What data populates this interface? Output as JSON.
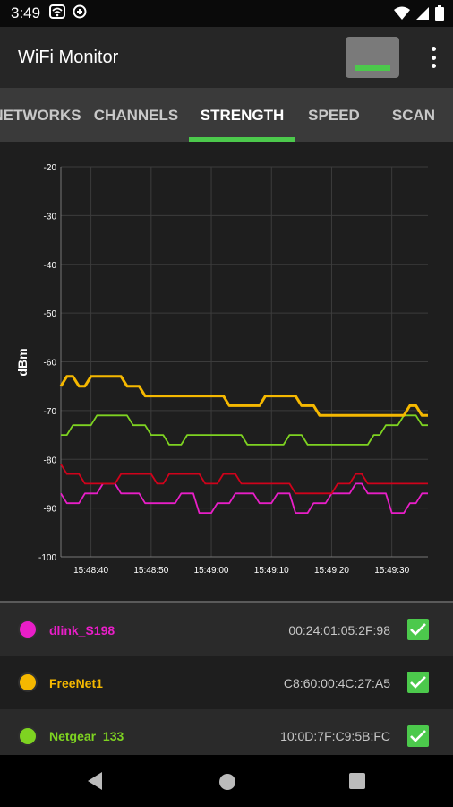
{
  "status_bar": {
    "time": "3:49",
    "left_icons": [
      "wifi-box-icon",
      "data-saver-icon"
    ],
    "right_icons": [
      "wifi-signal-icon",
      "cell-signal-icon",
      "battery-icon"
    ]
  },
  "app_bar": {
    "title": "WiFi Monitor",
    "signal_indicator_color": "#4cc94c",
    "menu_icon": "more-vert-icon"
  },
  "tabs": {
    "items": [
      {
        "label": "NETWORKS",
        "active": false
      },
      {
        "label": "CHANNELS",
        "active": false
      },
      {
        "label": "STRENGTH",
        "active": true
      },
      {
        "label": "SPEED",
        "active": false
      },
      {
        "label": "SCAN",
        "active": false
      }
    ],
    "accent": "#4cc94c"
  },
  "chart_data": {
    "type": "line",
    "ylabel": "dBm",
    "xlabel": "",
    "ylim": [
      -100,
      -20
    ],
    "yticks": [
      -20,
      -30,
      -40,
      -50,
      -60,
      -70,
      -80,
      -90,
      -100
    ],
    "xtick_labels": [
      "15:48:40",
      "15:48:50",
      "15:49:00",
      "15:49:10",
      "15:49:20",
      "15:49:30"
    ],
    "xlim_seconds": [
      0,
      61
    ],
    "xtick_seconds": [
      5,
      15,
      25,
      35,
      45,
      55
    ],
    "grid": true,
    "series": [
      {
        "name": "FreeNet1",
        "color": "#f5b800",
        "x": [
          0,
          1,
          2,
          3,
          4,
          5,
          6,
          7,
          8,
          9,
          10,
          11,
          12,
          13,
          14,
          15,
          16,
          17,
          18,
          19,
          20,
          21,
          22,
          23,
          24,
          25,
          26,
          27,
          28,
          29,
          30,
          31,
          32,
          33,
          34,
          35,
          36,
          37,
          38,
          39,
          40,
          41,
          42,
          43,
          44,
          45,
          46,
          47,
          48,
          49,
          50,
          51,
          52,
          53,
          54,
          55,
          56,
          57,
          58,
          59,
          60,
          61
        ],
        "y": [
          -65,
          -63,
          -63,
          -65,
          -65,
          -63,
          -63,
          -63,
          -63,
          -63,
          -63,
          -65,
          -65,
          -65,
          -67,
          -67,
          -67,
          -67,
          -67,
          -67,
          -67,
          -67,
          -67,
          -67,
          -67,
          -67,
          -67,
          -67,
          -69,
          -69,
          -69,
          -69,
          -69,
          -69,
          -67,
          -67,
          -67,
          -67,
          -67,
          -67,
          -69,
          -69,
          -69,
          -71,
          -71,
          -71,
          -71,
          -71,
          -71,
          -71,
          -71,
          -71,
          -71,
          -71,
          -71,
          -71,
          -71,
          -71,
          -69,
          -69,
          -71,
          -71
        ]
      },
      {
        "name": "Netgear_133",
        "color": "#7ed321",
        "x": [
          0,
          1,
          2,
          3,
          4,
          5,
          6,
          7,
          8,
          9,
          10,
          11,
          12,
          13,
          14,
          15,
          16,
          17,
          18,
          19,
          20,
          21,
          22,
          23,
          24,
          25,
          26,
          27,
          28,
          29,
          30,
          31,
          32,
          33,
          34,
          35,
          36,
          37,
          38,
          39,
          40,
          41,
          42,
          43,
          44,
          45,
          46,
          47,
          48,
          49,
          50,
          51,
          52,
          53,
          54,
          55,
          56,
          57,
          58,
          59,
          60,
          61
        ],
        "y": [
          -75,
          -75,
          -73,
          -73,
          -73,
          -73,
          -71,
          -71,
          -71,
          -71,
          -71,
          -71,
          -73,
          -73,
          -73,
          -75,
          -75,
          -75,
          -77,
          -77,
          -77,
          -75,
          -75,
          -75,
          -75,
          -75,
          -75,
          -75,
          -75,
          -75,
          -75,
          -77,
          -77,
          -77,
          -77,
          -77,
          -77,
          -77,
          -75,
          -75,
          -75,
          -77,
          -77,
          -77,
          -77,
          -77,
          -77,
          -77,
          -77,
          -77,
          -77,
          -77,
          -75,
          -75,
          -73,
          -73,
          -73,
          -71,
          -71,
          -71,
          -73,
          -73
        ]
      },
      {
        "name": "",
        "color": "#d0021b",
        "x": [
          0,
          1,
          2,
          3,
          4,
          5,
          6,
          7,
          8,
          9,
          10,
          11,
          12,
          13,
          14,
          15,
          16,
          17,
          18,
          19,
          20,
          21,
          22,
          23,
          24,
          25,
          26,
          27,
          28,
          29,
          30,
          31,
          32,
          33,
          34,
          35,
          36,
          37,
          38,
          39,
          40,
          41,
          42,
          43,
          44,
          45,
          46,
          47,
          48,
          49,
          50,
          51,
          52,
          53,
          54,
          55,
          56,
          57,
          58,
          59,
          60,
          61
        ],
        "y": [
          -81,
          -83,
          -83,
          -83,
          -85,
          -85,
          -85,
          -85,
          -85,
          -85,
          -83,
          -83,
          -83,
          -83,
          -83,
          -83,
          -85,
          -85,
          -83,
          -83,
          -83,
          -83,
          -83,
          -83,
          -85,
          -85,
          -85,
          -83,
          -83,
          -83,
          -85,
          -85,
          -85,
          -85,
          -85,
          -85,
          -85,
          -85,
          -85,
          -87,
          -87,
          -87,
          -87,
          -87,
          -87,
          -87,
          -85,
          -85,
          -85,
          -83,
          -83,
          -85,
          -85,
          -85,
          -85,
          -85,
          -85,
          -85,
          -85,
          -85,
          -85,
          -85
        ]
      },
      {
        "name": "dlink_S198",
        "color": "#e91ec8",
        "x": [
          0,
          1,
          2,
          3,
          4,
          5,
          6,
          7,
          8,
          9,
          10,
          11,
          12,
          13,
          14,
          15,
          16,
          17,
          18,
          19,
          20,
          21,
          22,
          23,
          24,
          25,
          26,
          27,
          28,
          29,
          30,
          31,
          32,
          33,
          34,
          35,
          36,
          37,
          38,
          39,
          40,
          41,
          42,
          43,
          44,
          45,
          46,
          47,
          48,
          49,
          50,
          51,
          52,
          53,
          54,
          55,
          56,
          57,
          58,
          59,
          60,
          61
        ],
        "y": [
          -87,
          -89,
          -89,
          -89,
          -87,
          -87,
          -87,
          -85,
          -85,
          -85,
          -87,
          -87,
          -87,
          -87,
          -89,
          -89,
          -89,
          -89,
          -89,
          -89,
          -87,
          -87,
          -87,
          -91,
          -91,
          -91,
          -89,
          -89,
          -89,
          -87,
          -87,
          -87,
          -87,
          -89,
          -89,
          -89,
          -87,
          -87,
          -87,
          -91,
          -91,
          -91,
          -89,
          -89,
          -89,
          -87,
          -87,
          -87,
          -87,
          -85,
          -85,
          -87,
          -87,
          -87,
          -87,
          -91,
          -91,
          -91,
          -89,
          -89,
          -87,
          -87
        ]
      }
    ]
  },
  "networks": [
    {
      "name": "dlink_S198",
      "mac": "00:24:01:05:2F:98",
      "color": "#e91ec8",
      "checked": true
    },
    {
      "name": "FreeNet1",
      "mac": "C8:60:00:4C:27:A5",
      "color": "#f5b800",
      "checked": true
    },
    {
      "name": "Netgear_133",
      "mac": "10:0D:7F:C9:5B:FC",
      "color": "#7ed321",
      "checked": true
    }
  ],
  "nav_bar": {
    "back_icon": "back-triangle-icon",
    "home_icon": "home-circle-icon",
    "recents_icon": "recents-square-icon"
  }
}
